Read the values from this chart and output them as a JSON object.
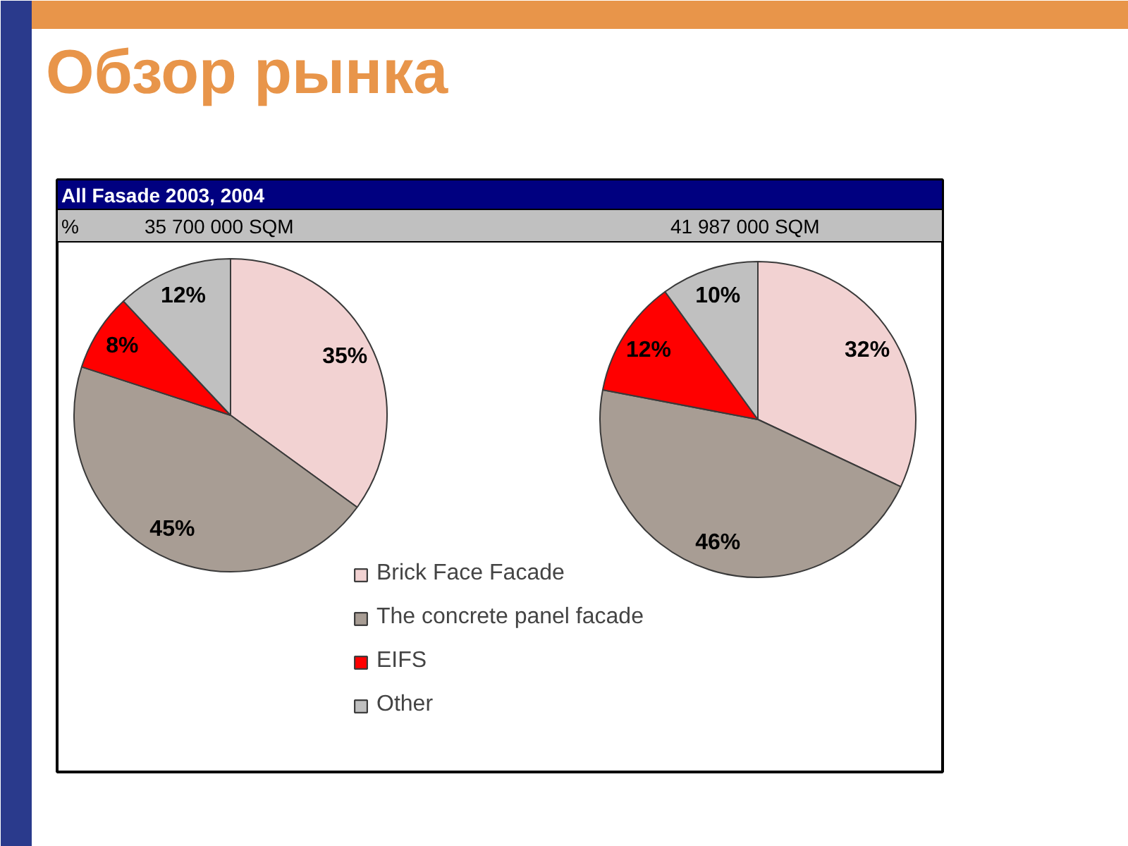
{
  "chart_data": {
    "type": "pie",
    "title": "Обзор рынка",
    "subtitle": "All Fasade 2003, 2004",
    "annotations": [
      "%",
      "35 700 000 SQM",
      "41 987 000 SQM"
    ],
    "categories": [
      "Brick Face Facade",
      "The concrete panel facade",
      "EIFS",
      "Other"
    ],
    "colors": [
      "#f2d2d2",
      "#a89d94",
      "#ff0000",
      "#c0c0c0"
    ],
    "series": [
      {
        "values": [
          35,
          45,
          8,
          12
        ],
        "value_labels": [
          "35%",
          "45%",
          "8%",
          "12%"
        ]
      },
      {
        "values": [
          32,
          46,
          12,
          10
        ],
        "value_labels": [
          "32%",
          "46%",
          "12%",
          "10%"
        ]
      }
    ],
    "legend": "bottom"
  }
}
